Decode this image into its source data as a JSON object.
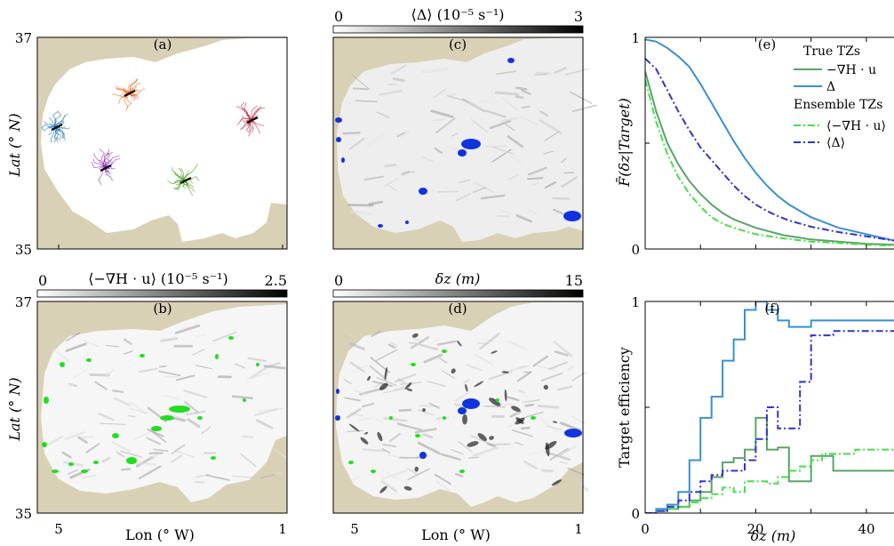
{
  "chart_data": [
    {
      "type": "map",
      "panel": "(a)",
      "ylabel": "Lat (° N)",
      "yticks": [
        "37",
        "35"
      ],
      "xticks": [
        "5",
        "1"
      ],
      "title": "",
      "clusters": [
        {
          "name": "blue",
          "color": "#1f77b4"
        },
        {
          "name": "orange",
          "color": "#e8702a"
        },
        {
          "name": "red",
          "color": "#c0304a"
        },
        {
          "name": "purple",
          "color": "#8e2db5"
        },
        {
          "name": "green",
          "color": "#4ca32a"
        }
      ]
    },
    {
      "type": "heatmap",
      "panel": "(c)",
      "colorbar": {
        "label": "⟨Δ⟩ (10⁻⁵ s⁻¹)",
        "min": "0",
        "max": "3"
      },
      "overlay_color": "#1133dd"
    },
    {
      "type": "heatmap",
      "panel": "(b)",
      "colorbar": {
        "label": "⟨−∇H · u⟩ (10⁻⁵ s⁻¹)",
        "min": "0",
        "max": "2.5"
      },
      "ylabel": "Lat (° N)",
      "yticks": [
        "37",
        "35"
      ],
      "xlabel": "Lon (° W)",
      "xticks": [
        "5",
        "1"
      ],
      "overlay_color": "#22dd22"
    },
    {
      "type": "heatmap",
      "panel": "(d)",
      "colorbar": {
        "label": "δz (m)",
        "min": "0",
        "max": "15"
      },
      "xlabel": "Lon (° W)",
      "xticks": [
        "5",
        "1"
      ],
      "overlay_colors": [
        "#1133dd",
        "#22dd22"
      ]
    },
    {
      "type": "line",
      "panel": "(e)",
      "ylabel": "F̄(δz|Target)",
      "yticks": [
        "1",
        "0"
      ],
      "ylim": [
        0,
        1
      ],
      "xlim": [
        0,
        45
      ],
      "legend": {
        "placement": "top-right",
        "group1": "True TZs",
        "group2": "Ensemble TZs",
        "labels": [
          "−∇H · u",
          "Δ",
          "⟨−∇H · u⟩",
          "⟨Δ⟩"
        ]
      },
      "series": [
        {
          "name": "−∇H · u",
          "color": "#5aa36a",
          "style": "solid",
          "x": [
            0,
            2,
            4,
            6,
            8,
            10,
            12,
            14,
            16,
            18,
            20,
            25,
            30,
            35,
            40,
            45
          ],
          "y": [
            0.84,
            0.65,
            0.5,
            0.4,
            0.32,
            0.26,
            0.21,
            0.17,
            0.14,
            0.12,
            0.1,
            0.065,
            0.045,
            0.035,
            0.025,
            0.02
          ]
        },
        {
          "name": "Δ",
          "color": "#3a8fd0",
          "style": "solid",
          "x": [
            0,
            2,
            4,
            6,
            8,
            10,
            12,
            14,
            16,
            18,
            20,
            22,
            24,
            26,
            28,
            30,
            35,
            40,
            45
          ],
          "y": [
            0.99,
            0.98,
            0.95,
            0.91,
            0.86,
            0.78,
            0.69,
            0.6,
            0.51,
            0.43,
            0.36,
            0.3,
            0.25,
            0.21,
            0.18,
            0.15,
            0.1,
            0.07,
            0.04
          ]
        },
        {
          "name": "⟨−∇H · u⟩",
          "color": "#44e044",
          "style": "dashdot",
          "x": [
            0,
            2,
            4,
            6,
            8,
            10,
            12,
            14,
            16,
            18,
            20,
            25,
            30,
            35,
            40,
            45
          ],
          "y": [
            0.8,
            0.6,
            0.45,
            0.34,
            0.26,
            0.2,
            0.15,
            0.12,
            0.1,
            0.085,
            0.07,
            0.05,
            0.035,
            0.028,
            0.02,
            0.015
          ]
        },
        {
          "name": "⟨Δ⟩",
          "color": "#3333cc",
          "style": "dashdot",
          "x": [
            0,
            2,
            4,
            6,
            8,
            10,
            12,
            14,
            16,
            18,
            20,
            22,
            24,
            26,
            28,
            30,
            35,
            40,
            45
          ],
          "y": [
            0.9,
            0.85,
            0.75,
            0.65,
            0.56,
            0.48,
            0.42,
            0.36,
            0.3,
            0.25,
            0.21,
            0.18,
            0.155,
            0.135,
            0.12,
            0.105,
            0.08,
            0.06,
            0.04
          ]
        }
      ]
    },
    {
      "type": "line",
      "panel": "(f)",
      "ylabel": "Target efficiency",
      "xlabel": "δz (m)",
      "yticks": [
        "1",
        "0"
      ],
      "xticks": [
        "0",
        "20",
        "40"
      ],
      "ylim": [
        0,
        1
      ],
      "xlim": [
        0,
        45
      ],
      "series": [
        {
          "name": "−∇H · u",
          "color": "#5aa36a",
          "style": "step",
          "x": [
            0,
            2,
            4,
            6,
            8,
            10,
            12,
            14,
            16,
            18,
            20,
            22,
            24,
            26,
            28,
            30,
            32,
            34,
            36,
            38,
            40,
            42,
            44,
            45
          ],
          "y": [
            0,
            0.01,
            0.02,
            0.03,
            0.06,
            0.1,
            0.17,
            0.24,
            0.26,
            0.3,
            0.45,
            0.3,
            0.31,
            0.15,
            0.15,
            0.27,
            0.27,
            0.2,
            0.2,
            0.2,
            0.2,
            0.2,
            0.2,
            0.2
          ]
        },
        {
          "name": "Δ",
          "color": "#3a8fd0",
          "style": "step",
          "x": [
            0,
            2,
            4,
            6,
            8,
            10,
            12,
            14,
            16,
            18,
            20,
            22,
            24,
            26,
            28,
            30,
            32,
            34,
            36,
            38,
            40,
            42,
            44,
            45
          ],
          "y": [
            0,
            0.02,
            0.04,
            0.1,
            0.25,
            0.45,
            0.55,
            0.72,
            0.82,
            0.96,
            1.0,
            0.96,
            0.91,
            0.88,
            0.88,
            0.91,
            0.91,
            0.91,
            0.91,
            0.91,
            0.91,
            0.91,
            0.91,
            0.91
          ]
        },
        {
          "name": "⟨−∇H · u⟩",
          "color": "#44e044",
          "style": "dashstep",
          "x": [
            0,
            2,
            4,
            6,
            8,
            10,
            12,
            14,
            16,
            18,
            20,
            22,
            24,
            26,
            28,
            30,
            32,
            34,
            36,
            38,
            40,
            42,
            44,
            45
          ],
          "y": [
            0,
            0.01,
            0.02,
            0.03,
            0.05,
            0.07,
            0.09,
            0.12,
            0.1,
            0.15,
            0.15,
            0.14,
            0.17,
            0.2,
            0.22,
            0.25,
            0.28,
            0.28,
            0.28,
            0.3,
            0.3,
            0.3,
            0.3,
            0.3
          ]
        },
        {
          "name": "⟨Δ⟩",
          "color": "#3333cc",
          "style": "dashstep",
          "x": [
            0,
            2,
            4,
            6,
            8,
            10,
            12,
            14,
            16,
            18,
            20,
            22,
            24,
            26,
            28,
            30,
            32,
            34,
            36,
            38,
            40,
            42,
            44,
            45
          ],
          "y": [
            0,
            0.01,
            0.03,
            0.06,
            0.1,
            0.15,
            0.18,
            0.2,
            0.2,
            0.25,
            0.35,
            0.5,
            0.4,
            0.4,
            0.62,
            0.84,
            0.84,
            0.86,
            0.86,
            0.86,
            0.86,
            0.86,
            0.86,
            0.86
          ]
        }
      ]
    }
  ]
}
